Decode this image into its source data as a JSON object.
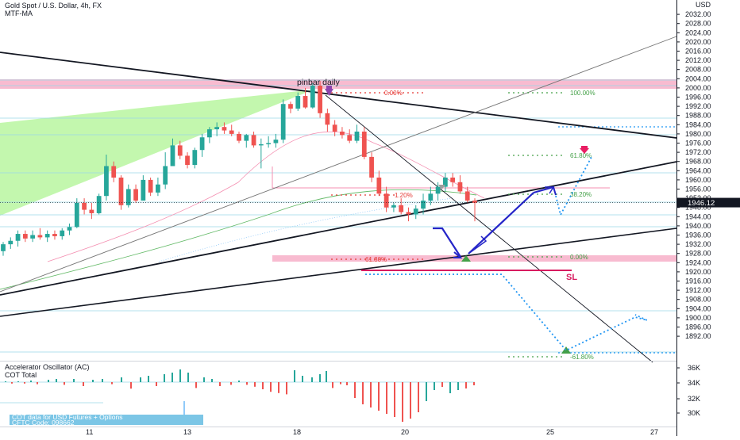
{
  "header": {
    "symbol_line": "Gold Spot / U.S. Dollar, 4h, FX",
    "indicator_line": "MTF-MA"
  },
  "price_axis": {
    "unit": "USD",
    "ticks": [
      "2032.00",
      "2028.00",
      "2024.00",
      "2020.00",
      "2016.00",
      "2012.00",
      "2008.00",
      "2004.00",
      "2000.00",
      "1996.00",
      "1992.00",
      "1988.00",
      "1984.00",
      "1980.00",
      "1976.00",
      "1972.00",
      "1968.00",
      "1964.00",
      "1960.00",
      "1956.00",
      "1952.00",
      "1948.00",
      "1944.00",
      "1940.00",
      "1936.00",
      "1932.00",
      "1928.00",
      "1924.00",
      "1920.00",
      "1916.00",
      "1912.00",
      "1908.00",
      "1904.00",
      "1900.00",
      "1896.00",
      "1892.00"
    ],
    "current_price_label": "1946.12",
    "current_price": 1946.12
  },
  "time_axis": {
    "labels": [
      "11",
      "13",
      "18",
      "20",
      "25",
      "27"
    ]
  },
  "annotations": {
    "pinbar": "pinbar daily",
    "sl": "SL",
    "fib_left": [
      "0.00%",
      "1.20%",
      "61.80%"
    ],
    "fib_right": [
      "100.00%",
      "61.80%",
      "38.20%",
      "0.00%",
      "-61.80%"
    ]
  },
  "oscillator": {
    "title": "Accelerator Oscillator (AC)",
    "subtitle": "COT Total",
    "axis_ticks": [
      "36K",
      "34K",
      "32K",
      "30K"
    ],
    "cot_lines": [
      "COT data for USD Futures + Options",
      "CFTC Code: 098662"
    ]
  },
  "chart_data": {
    "type": "candlestick",
    "title": "Gold Spot / U.S. Dollar, 4h, FX",
    "xlabel": "",
    "ylabel": "USD",
    "ylim": [
      1890,
      2034
    ],
    "y_scale": "linear",
    "grid": false,
    "x_tick_labels": [
      "11",
      "13",
      "18",
      "20",
      "25",
      "27"
    ],
    "ohlc": [
      [
        1925.0,
        1929.0,
        1923.0,
        1928.0
      ],
      [
        1928.0,
        1931.0,
        1926.0,
        1929.5
      ],
      [
        1929.5,
        1934.0,
        1927.0,
        1932.5
      ],
      [
        1932.5,
        1934.0,
        1929.0,
        1930.5
      ],
      [
        1930.5,
        1934.0,
        1929.0,
        1932.0
      ],
      [
        1932.0,
        1935.0,
        1930.0,
        1931.0
      ],
      [
        1931.0,
        1934.0,
        1929.0,
        1932.5
      ],
      [
        1932.5,
        1934.0,
        1930.0,
        1931.5
      ],
      [
        1931.5,
        1935.0,
        1930.0,
        1934.0
      ],
      [
        1934.0,
        1937.0,
        1932.0,
        1935.5
      ],
      [
        1935.5,
        1948.0,
        1935.0,
        1946.0
      ],
      [
        1946.0,
        1948.0,
        1941.0,
        1943.0
      ],
      [
        1943.0,
        1946.0,
        1939.0,
        1941.5
      ],
      [
        1941.5,
        1950.0,
        1941.0,
        1949.0
      ],
      [
        1949.0,
        1967.0,
        1947.0,
        1962.0
      ],
      [
        1962.0,
        1964.0,
        1955.0,
        1957.0
      ],
      [
        1957.0,
        1958.0,
        1943.0,
        1945.0
      ],
      [
        1945.0,
        1954.0,
        1944.0,
        1952.0
      ],
      [
        1952.0,
        1954.0,
        1946.0,
        1947.0
      ],
      [
        1947.0,
        1958.0,
        1947.0,
        1956.0
      ],
      [
        1956.0,
        1957.0,
        1949.0,
        1950.5
      ],
      [
        1950.5,
        1957.0,
        1949.0,
        1954.0
      ],
      [
        1954.0,
        1968.0,
        1952.0,
        1962.0
      ],
      [
        1962.0,
        1974.0,
        1962.0,
        1971.0
      ],
      [
        1971.0,
        1973.0,
        1965.0,
        1966.5
      ],
      [
        1966.5,
        1968.0,
        1961.0,
        1962.5
      ],
      [
        1962.5,
        1970.0,
        1961.0,
        1969.0
      ],
      [
        1969.0,
        1976.0,
        1966.0,
        1974.5
      ],
      [
        1974.5,
        1979.0,
        1972.0,
        1978.0
      ],
      [
        1978.0,
        1981.0,
        1975.0,
        1979.0
      ],
      [
        1979.0,
        1981.0,
        1976.0,
        1977.5
      ],
      [
        1977.5,
        1980.0,
        1975.0,
        1976.0
      ],
      [
        1976.0,
        1977.0,
        1972.0,
        1973.0
      ],
      [
        1973.0,
        1976.0,
        1970.0,
        1975.5
      ],
      [
        1975.5,
        1977.0,
        1970.0,
        1971.0
      ],
      [
        1971.0,
        1974.0,
        1961.0,
        1971.5
      ],
      [
        1971.5,
        1975.0,
        1970.0,
        1972.0
      ],
      [
        1972.0,
        1976.0,
        1970.0,
        1973.5
      ],
      [
        1973.5,
        1991.0,
        1972.0,
        1989.0
      ],
      [
        1989.0,
        1990.0,
        1985.0,
        1987.0
      ],
      [
        1987.0,
        1994.0,
        1986.0,
        1992.5
      ],
      [
        1992.5,
        1996.0,
        1987.0,
        1987.5
      ],
      [
        1987.5,
        1998.0,
        1987.0,
        1997.0
      ],
      [
        1997.0,
        1999.0,
        1983.0,
        1985.0
      ],
      [
        1985.0,
        1987.0,
        1977.0,
        1980.0
      ],
      [
        1980.0,
        1982.0,
        1975.0,
        1977.0
      ],
      [
        1977.0,
        1979.0,
        1974.0,
        1975.5
      ],
      [
        1975.5,
        1978.0,
        1972.0,
        1973.0
      ],
      [
        1973.0,
        1980.0,
        1972.0,
        1977.0
      ],
      [
        1977.0,
        1979.0,
        1965.0,
        1966.0
      ],
      [
        1966.0,
        1968.0,
        1955.0,
        1957.0
      ],
      [
        1957.0,
        1960.0,
        1949.0,
        1950.0
      ],
      [
        1950.0,
        1953.0,
        1942.0,
        1944.0
      ],
      [
        1944.0,
        1946.0,
        1942.0,
        1945.0
      ],
      [
        1945.0,
        1948.0,
        1941.0,
        1942.0
      ],
      [
        1942.0,
        1944.0,
        1938.0,
        1941.0
      ],
      [
        1941.0,
        1945.0,
        1939.0,
        1943.5
      ],
      [
        1943.5,
        1950.0,
        1941.0,
        1947.0
      ],
      [
        1947.0,
        1953.0,
        1945.0,
        1950.0
      ],
      [
        1950.0,
        1955.0,
        1947.0,
        1953.0
      ],
      [
        1953.0,
        1959.0,
        1951.0,
        1957.0
      ],
      [
        1957.0,
        1959.0,
        1953.0,
        1955.0
      ],
      [
        1955.0,
        1958.0,
        1950.0,
        1951.0
      ],
      [
        1951.0,
        1953.0,
        1946.0,
        1947.0
      ],
      [
        1947.0,
        1948.0,
        1938.0,
        1946.0
      ]
    ]
  },
  "colors": {
    "up": "#26a69a",
    "down": "#ef5350",
    "pink_zone": "#f8bbd0",
    "green_wedge": "#b9f6a0",
    "arrow_blue": "#2525c8",
    "dotted_blue": "#2196f3",
    "fib_green": "#43a047",
    "fib_red": "#e53935",
    "sl_red": "#d81b60",
    "current_price_bg": "#131722"
  }
}
